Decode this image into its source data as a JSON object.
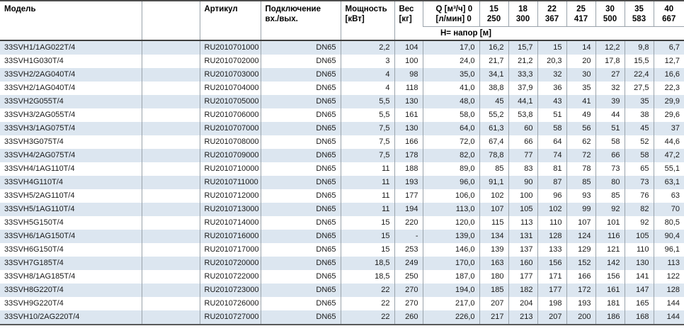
{
  "colors": {
    "row_alt_blue": "#dce6f0",
    "grid_line": "#9aa3ab",
    "header_rule_dark": "#3f3f3f",
    "text": "#1a1a1a"
  },
  "table": {
    "header": {
      "model": "Модель",
      "article": "Артикул",
      "connection": [
        "Подключение",
        "вх./вых."
      ],
      "power": [
        "Мощность",
        "[кВт]"
      ],
      "weight": [
        "Вес",
        "[кг]"
      ],
      "flow": [
        "Q [м³/ч] 0",
        "[л/мин] 0"
      ],
      "flow_columns": [
        {
          "m3h": "15",
          "lmin": "250"
        },
        {
          "m3h": "18",
          "lmin": "300"
        },
        {
          "m3h": "22",
          "lmin": "367"
        },
        {
          "m3h": "25",
          "lmin": "417"
        },
        {
          "m3h": "30",
          "lmin": "500"
        },
        {
          "m3h": "35",
          "lmin": "583"
        },
        {
          "m3h": "40",
          "lmin": "667"
        }
      ],
      "head_label": "Н= напор [м]"
    },
    "rows": [
      {
        "model": "33SVH1/1AG022T/4",
        "article": "RU2010701000",
        "connection": "DN65",
        "power": "2,2",
        "weight": "104",
        "values": [
          "17,0",
          "16,2",
          "15,7",
          "15",
          "14",
          "12,2",
          "9,8",
          "6,7"
        ]
      },
      {
        "model": "33SVH1G030T/4",
        "article": "RU2010702000",
        "connection": "DN65",
        "power": "3",
        "weight": "100",
        "values": [
          "24,0",
          "21,7",
          "21,2",
          "20,3",
          "20",
          "17,8",
          "15,5",
          "12,7"
        ]
      },
      {
        "model": "33SVH2/2AG040T/4",
        "article": "RU2010703000",
        "connection": "DN65",
        "power": "4",
        "weight": "98",
        "values": [
          "35,0",
          "34,1",
          "33,3",
          "32",
          "30",
          "27",
          "22,4",
          "16,6"
        ]
      },
      {
        "model": "33SVH2/1AG040T/4",
        "article": "RU2010704000",
        "connection": "DN65",
        "power": "4",
        "weight": "118",
        "values": [
          "41,0",
          "38,8",
          "37,9",
          "36",
          "35",
          "32",
          "27,5",
          "22,3"
        ]
      },
      {
        "model": "33SVH2G055T/4",
        "article": "RU2010705000",
        "connection": "DN65",
        "power": "5,5",
        "weight": "130",
        "values": [
          "48,0",
          "45",
          "44,1",
          "43",
          "41",
          "39",
          "35",
          "29,9"
        ]
      },
      {
        "model": "33SVH3/2AG055T/4",
        "article": "RU2010706000",
        "connection": "DN65",
        "power": "5,5",
        "weight": "161",
        "values": [
          "58,0",
          "55,2",
          "53,8",
          "51",
          "49",
          "44",
          "38",
          "29,6"
        ]
      },
      {
        "model": "33SVH3/1AG075T/4",
        "article": "RU2010707000",
        "connection": "DN65",
        "power": "7,5",
        "weight": "130",
        "values": [
          "64,0",
          "61,3",
          "60",
          "58",
          "56",
          "51",
          "45",
          "37"
        ]
      },
      {
        "model": "33SVH3G075T/4",
        "article": "RU2010708000",
        "connection": "DN65",
        "power": "7,5",
        "weight": "166",
        "values": [
          "72,0",
          "67,4",
          "66",
          "64",
          "62",
          "58",
          "52",
          "44,6"
        ]
      },
      {
        "model": "33SVH4/2AG075T/4",
        "article": "RU2010709000",
        "connection": "DN65",
        "power": "7,5",
        "weight": "178",
        "values": [
          "82,0",
          "78,8",
          "77",
          "74",
          "72",
          "66",
          "58",
          "47,2"
        ]
      },
      {
        "model": "33SVH4/1AG110T/4",
        "article": "RU2010710000",
        "connection": "DN65",
        "power": "11",
        "weight": "188",
        "values": [
          "89,0",
          "85",
          "83",
          "81",
          "78",
          "73",
          "65",
          "55,1"
        ]
      },
      {
        "model": "33SVH4G110T/4",
        "article": "RU2010711000",
        "connection": "DN65",
        "power": "11",
        "weight": "193",
        "values": [
          "96,0",
          "91,1",
          "90",
          "87",
          "85",
          "80",
          "73",
          "63,1"
        ]
      },
      {
        "model": "33SVH5/2AG110T/4",
        "article": "RU2010712000",
        "connection": "DN65",
        "power": "11",
        "weight": "177",
        "values": [
          "106,0",
          "102",
          "100",
          "96",
          "93",
          "85",
          "76",
          "63"
        ]
      },
      {
        "model": "33SVH5/1AG110T/4",
        "article": "RU2010713000",
        "connection": "DN65",
        "power": "11",
        "weight": "194",
        "values": [
          "113,0",
          "107",
          "105",
          "102",
          "99",
          "92",
          "82",
          "70"
        ]
      },
      {
        "model": "33SVH5G150T/4",
        "article": "RU2010714000",
        "connection": "DN65",
        "power": "15",
        "weight": "220",
        "values": [
          "120,0",
          "115",
          "113",
          "110",
          "107",
          "101",
          "92",
          "80,5"
        ]
      },
      {
        "model": "33SVH6/1AG150T/4",
        "article": "RU2010716000",
        "connection": "DN65",
        "power": "15",
        "weight": "-",
        "values": [
          "139,0",
          "134",
          "131",
          "128",
          "124",
          "116",
          "105",
          "90,4"
        ]
      },
      {
        "model": "33SVH6G150T/4",
        "article": "RU2010717000",
        "connection": "DN65",
        "power": "15",
        "weight": "253",
        "values": [
          "146,0",
          "139",
          "137",
          "133",
          "129",
          "121",
          "110",
          "96,1"
        ]
      },
      {
        "model": "33SVH7G185T/4",
        "article": "RU2010720000",
        "connection": "DN65",
        "power": "18,5",
        "weight": "249",
        "values": [
          "170,0",
          "163",
          "160",
          "156",
          "152",
          "142",
          "130",
          "113"
        ]
      },
      {
        "model": "33SVH8/1AG185T/4",
        "article": "RU2010722000",
        "connection": "DN65",
        "power": "18,5",
        "weight": "250",
        "values": [
          "187,0",
          "180",
          "177",
          "171",
          "166",
          "156",
          "141",
          "122"
        ]
      },
      {
        "model": "33SVH8G220T/4",
        "article": "RU2010723000",
        "connection": "DN65",
        "power": "22",
        "weight": "270",
        "values": [
          "194,0",
          "185",
          "182",
          "177",
          "172",
          "161",
          "147",
          "128"
        ]
      },
      {
        "model": "33SVH9G220T/4",
        "article": "RU2010726000",
        "connection": "DN65",
        "power": "22",
        "weight": "270",
        "values": [
          "217,0",
          "207",
          "204",
          "198",
          "193",
          "181",
          "165",
          "144"
        ]
      },
      {
        "model": "33SVH10/2AG220T/4",
        "article": "RU2010727000",
        "connection": "DN65",
        "power": "22",
        "weight": "260",
        "values": [
          "226,0",
          "217",
          "213",
          "207",
          "200",
          "186",
          "168",
          "144"
        ]
      }
    ]
  }
}
